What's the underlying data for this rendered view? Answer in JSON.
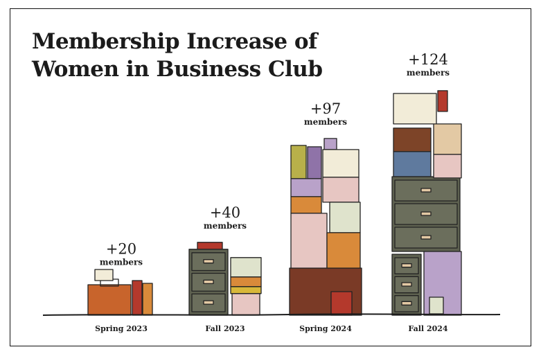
{
  "chart_data": {
    "type": "bar",
    "title": "Membership Increase of Women in Business Club",
    "categories": [
      "Spring 2023",
      "Fall 2023",
      "Spring 2024",
      "Fall 2024"
    ],
    "values": [
      20,
      40,
      97,
      124
    ],
    "value_labels": [
      "+20",
      "+40",
      "+97",
      "+124"
    ],
    "unit_label": "members",
    "xlabel": "",
    "ylabel": "",
    "grid": false,
    "legend": "none",
    "colors": {
      "outline": "#222222",
      "cabinet": "#5e6150",
      "cabinet_dark": "#4a4c3f",
      "drawer": "#6b6e5c",
      "bag": "#c8642c",
      "red": "#b4392c",
      "orange": "#d98a3a",
      "yellow": "#d8b83a",
      "olive": "#b8b04a",
      "purple": "#b9a2c9",
      "purple_dark": "#8f73a8",
      "pink": "#e7c6c2",
      "paper": "#f2ecd8",
      "wood": "#7a3a26",
      "blue": "#5f7a9e",
      "brown": "#7d4428",
      "tan": "#e3c9a4",
      "sage": "#dfe3cc"
    }
  }
}
